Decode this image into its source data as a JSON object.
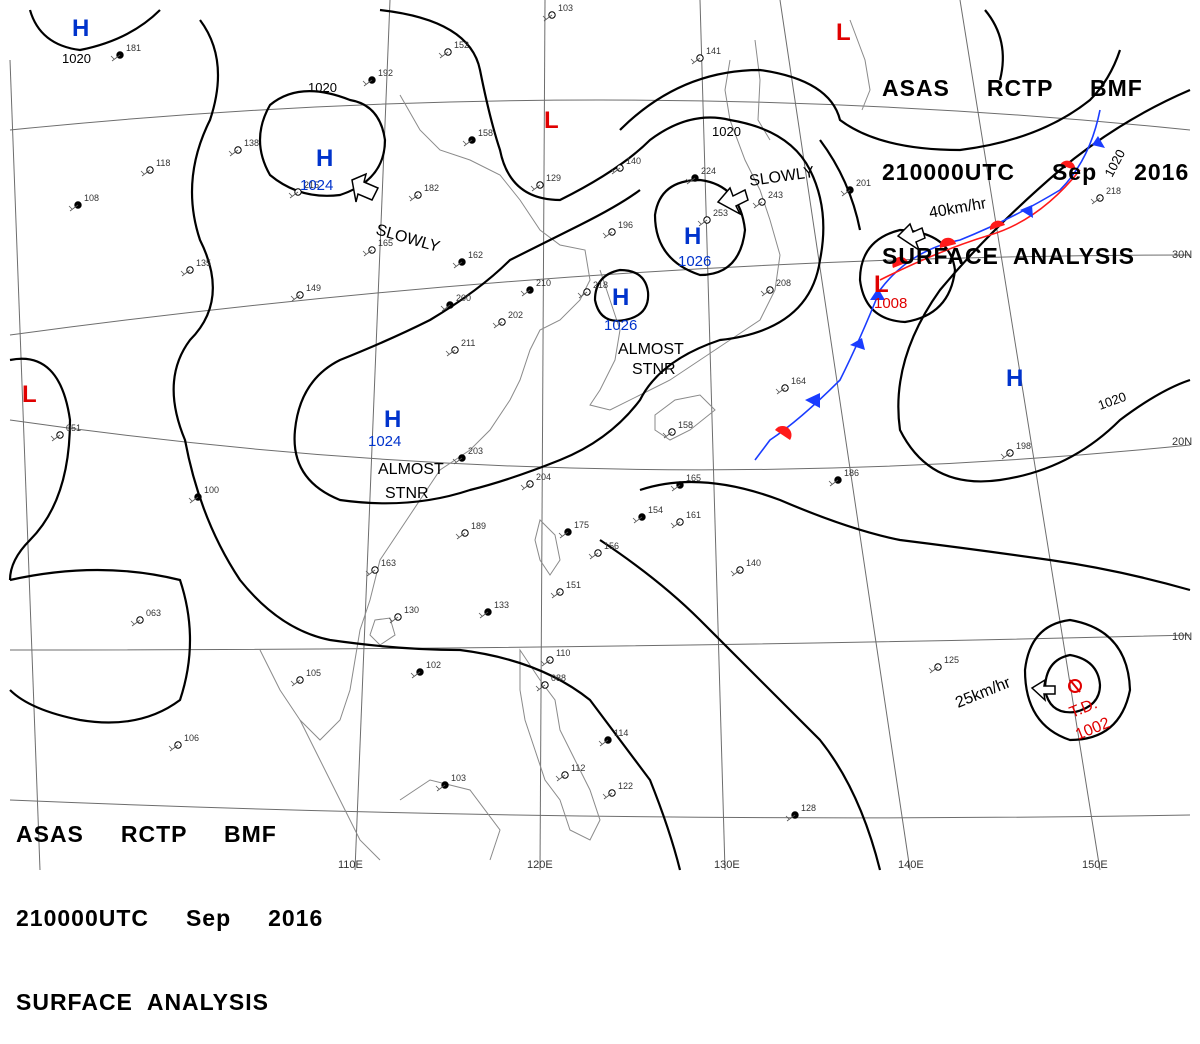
{
  "header": {
    "line1": "ASAS     RCTP     BMF",
    "line2": "210000UTC     Sep     2016",
    "line3": "SURFACE  ANALYSIS"
  },
  "footer": {
    "line1": "ASAS     RCTP     BMF",
    "line2": "210000UTC     Sep     2016",
    "line3": "SURFACE  ANALYSIS"
  },
  "pressure_systems": [
    {
      "type": "H",
      "value": "",
      "color": "#0033cc"
    },
    {
      "type": "H",
      "value": "1024",
      "color": "#0033cc"
    },
    {
      "type": "H",
      "value": "1026",
      "color": "#0033cc"
    },
    {
      "type": "H",
      "value": "1026",
      "color": "#0033cc"
    },
    {
      "type": "H",
      "value": "1024",
      "color": "#0033cc"
    },
    {
      "type": "H",
      "value": "",
      "color": "#0033cc"
    },
    {
      "type": "L",
      "value": "",
      "color": "#e00000"
    },
    {
      "type": "L",
      "value": "",
      "color": "#e00000"
    },
    {
      "type": "L",
      "value": "",
      "color": "#e00000"
    },
    {
      "type": "L",
      "value": "1008",
      "color": "#e00000"
    }
  ],
  "tropical_depression": {
    "label": "T.D.",
    "value": "1002",
    "color": "#e00000"
  },
  "isobar_labels": [
    "1020",
    "1020",
    "1020",
    "1020"
  ],
  "movement_labels": [
    "SLOWLY",
    "SLOWLY",
    "40km/hr",
    "25km/hr",
    "ALMOST\nSTNR",
    "ALMOST\nSTNR"
  ],
  "grid_labels": [
    "30N",
    "20N",
    "10N",
    "110E",
    "120E",
    "130E",
    "140E",
    "150E"
  ],
  "station_values": [
    "181",
    "152",
    "182",
    "192",
    "138",
    "118",
    "108",
    "215",
    "165",
    "162",
    "135",
    "149",
    "200",
    "211",
    "202",
    "210",
    "218",
    "196",
    "224",
    "253",
    "243",
    "201",
    "218",
    "208",
    "203",
    "204",
    "189",
    "175",
    "156",
    "151",
    "133",
    "130",
    "163",
    "100",
    "063",
    "051",
    "102",
    "105",
    "106",
    "103",
    "110",
    "088",
    "114",
    "112",
    "122",
    "128",
    "140",
    "125",
    "186",
    "198",
    "164",
    "165",
    "161",
    "158",
    "154",
    "140",
    "129",
    "158",
    "141",
    "103"
  ]
}
